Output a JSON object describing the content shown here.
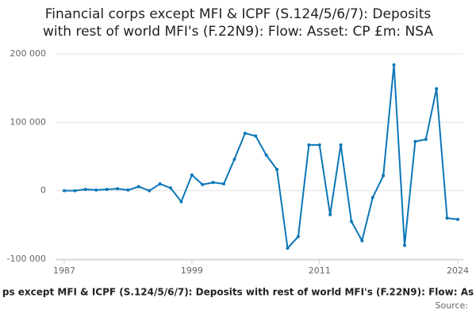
{
  "chart_data": {
    "type": "line",
    "title": [
      "Financial corps except MFI & ICPF (S.124/5/6/7): Deposits",
      "with rest of world MFI's (F.22N9): Flow: Asset: CP £m: NSA"
    ],
    "x_label": "ps except MFI & ICPF (S.124/5/6/7): Deposits with rest of world MFI's (F.22N9): Flow: As",
    "source": "Source:",
    "x": [
      1987,
      1988,
      1989,
      1990,
      1991,
      1992,
      1993,
      1994,
      1995,
      1996,
      1997,
      1998,
      1999,
      2000,
      2001,
      2002,
      2003,
      2004,
      2005,
      2006,
      2007,
      2008,
      2009,
      2010,
      2011,
      2012,
      2013,
      2014,
      2015,
      2016,
      2017,
      2018,
      2019,
      2020,
      2021,
      2022,
      2023,
      2024
    ],
    "series": [
      {
        "name": "Deposits",
        "color": "#0b76b7",
        "values": [
          0,
          0,
          2000,
          1000,
          2000,
          3000,
          1000,
          6000,
          0,
          10000,
          4000,
          -16000,
          23000,
          9000,
          12000,
          10000,
          46000,
          84000,
          80000,
          52000,
          31000,
          -84000,
          -67000,
          67000,
          67000,
          -35000,
          67000,
          -45000,
          -73000,
          -10000,
          22000,
          184000,
          -80000,
          72000,
          75000,
          149000,
          -40000,
          -42000
        ]
      }
    ],
    "xlim": [
      1987,
      2024
    ],
    "xticks": [
      1987,
      1999,
      2011,
      2024
    ],
    "ylim": [
      -100000,
      200000
    ],
    "yticks": [
      {
        "value": -100000,
        "label": "-100 000"
      },
      {
        "value": 0,
        "label": "0"
      },
      {
        "value": 100000,
        "label": "100 000"
      },
      {
        "value": 200000,
        "label": "200 000"
      }
    ],
    "grid": true
  }
}
